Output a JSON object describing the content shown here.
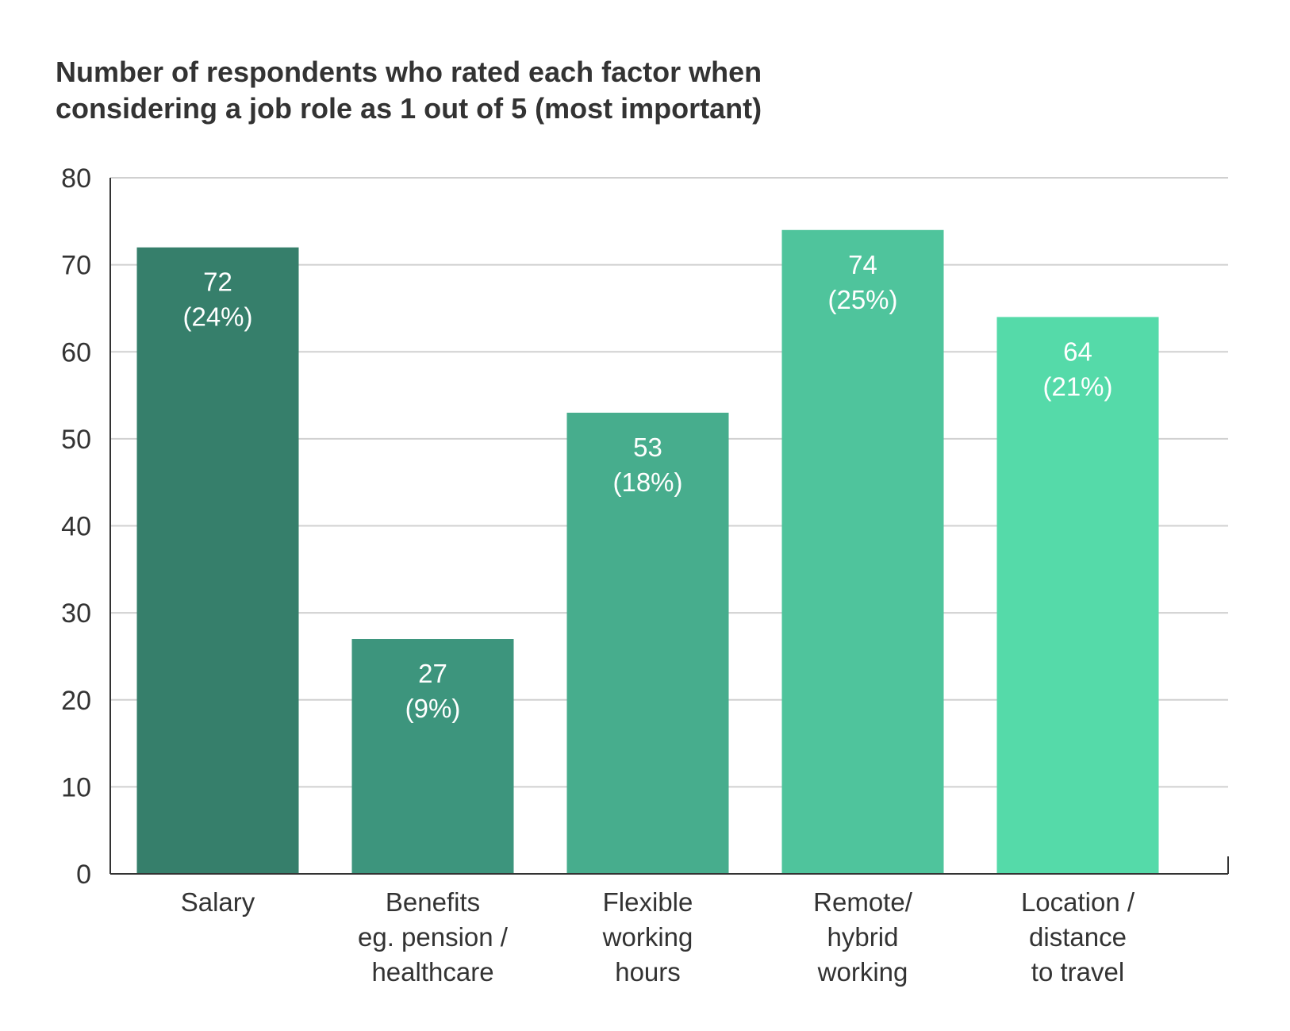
{
  "chart_data": {
    "type": "bar",
    "title": "Number of respondents who rated each factor when\nconsidering a job role as 1 out of 5 (most important)",
    "xlabel": "",
    "ylabel": "",
    "ylim": [
      0,
      80
    ],
    "yticks": [
      "0",
      "10",
      "20",
      "30",
      "40",
      "50",
      "60",
      "70",
      "80"
    ],
    "grid": true,
    "categories": [
      [
        "Salary"
      ],
      [
        "Benefits",
        "eg. pension /",
        "healthcare"
      ],
      [
        "Flexible",
        "working",
        "hours"
      ],
      [
        "Remote/",
        "hybrid",
        "working"
      ],
      [
        "Location /",
        "distance",
        "to travel"
      ]
    ],
    "values": [
      72,
      27,
      53,
      74,
      64
    ],
    "data_labels": [
      [
        "72",
        "(24%)"
      ],
      [
        "27",
        "(9%)"
      ],
      [
        "53",
        "(18%)"
      ],
      [
        "74",
        "(25%)"
      ],
      [
        "64",
        "(21%)"
      ]
    ],
    "colors": [
      "#367f6b",
      "#3d957d",
      "#47ad8d",
      "#4fc49c",
      "#55daa9"
    ],
    "gridline_color": "#d0d0d0",
    "axis_color": "#333333"
  }
}
